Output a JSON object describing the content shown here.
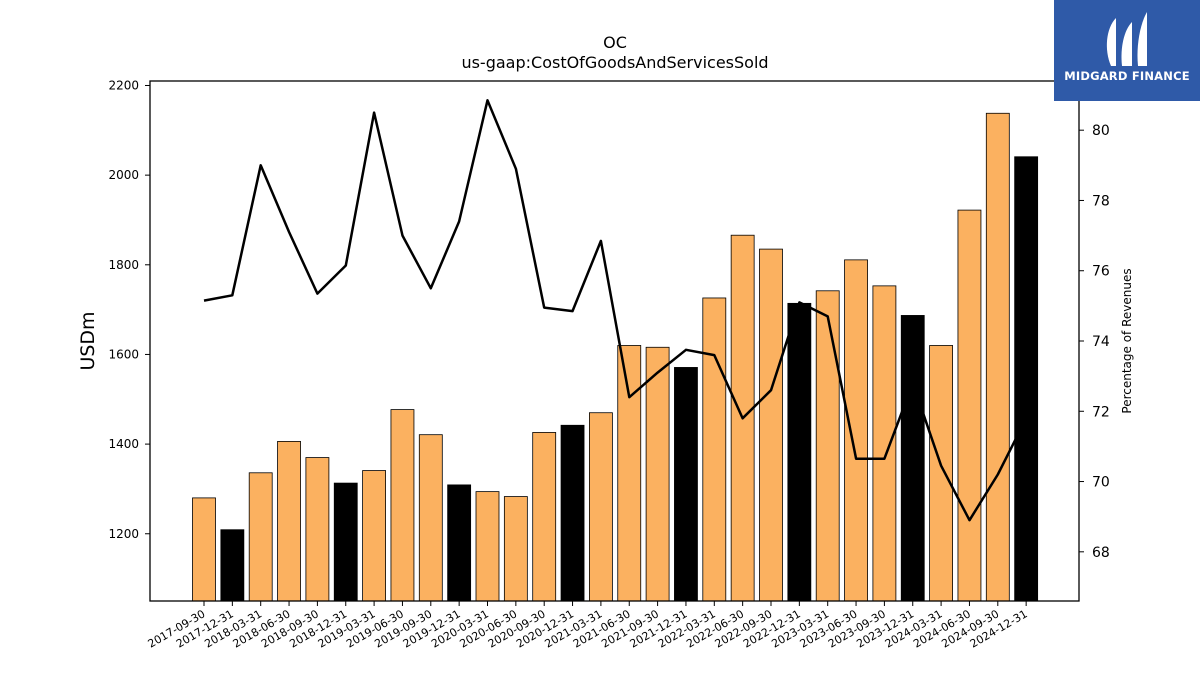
{
  "chart_data": {
    "type": "bar",
    "title": "OC",
    "subtitle": "us-gaap:CostOfGoodsAndServicesSold",
    "ylabel": "USDm",
    "y2label": "Percentage of Revenues",
    "ylim": [
      1050,
      2210
    ],
    "y2lim": [
      66.6,
      81.4
    ],
    "yticks": [
      1200,
      1400,
      1600,
      1800,
      2000,
      2200
    ],
    "y2ticks": [
      68,
      70,
      72,
      74,
      76,
      78,
      80
    ],
    "categories": [
      "2017-09-30",
      "2017-12-31",
      "2018-03-31",
      "2018-06-30",
      "2018-09-30",
      "2018-12-31",
      "2019-03-31",
      "2019-06-30",
      "2019-09-30",
      "2019-12-31",
      "2020-03-31",
      "2020-06-30",
      "2020-09-30",
      "2020-12-31",
      "2021-03-31",
      "2021-06-30",
      "2021-09-30",
      "2021-12-31",
      "2022-03-31",
      "2022-06-30",
      "2022-09-30",
      "2022-12-31",
      "2023-03-31",
      "2023-06-30",
      "2023-09-30",
      "2023-12-31",
      "2024-03-31",
      "2024-06-30",
      "2024-09-30",
      "2024-12-31"
    ],
    "series": [
      {
        "type": "bar",
        "values": [
          1280,
          1209,
          1336,
          1406,
          1370,
          1313,
          1341,
          1477,
          1421,
          1309,
          1294,
          1283,
          1426,
          1442,
          1470,
          1620,
          1616,
          1571,
          1726,
          1866,
          1835,
          1714,
          1742,
          1811,
          1753,
          1687,
          1620,
          1922,
          2138,
          2041
        ],
        "colors": [
          "#fbb160",
          "#000000",
          "#fbb160",
          "#fbb160",
          "#fbb160",
          "#000000",
          "#fbb160",
          "#fbb160",
          "#fbb160",
          "#000000",
          "#fbb160",
          "#fbb160",
          "#fbb160",
          "#000000",
          "#fbb160",
          "#fbb160",
          "#fbb160",
          "#000000",
          "#fbb160",
          "#fbb160",
          "#fbb160",
          "#000000",
          "#fbb160",
          "#fbb160",
          "#fbb160",
          "#000000",
          "#fbb160",
          "#fbb160",
          "#fbb160",
          "#000000"
        ]
      },
      {
        "type": "line",
        "axis": "right",
        "color": "#000000",
        "values": [
          75.15,
          75.3,
          79.0,
          77.1,
          75.35,
          76.15,
          80.5,
          77.0,
          75.5,
          77.4,
          80.85,
          78.9,
          74.95,
          74.85,
          76.85,
          72.4,
          73.1,
          73.75,
          73.6,
          71.8,
          72.6,
          75.1,
          74.7,
          70.65,
          70.65,
          72.8,
          70.45,
          68.9,
          70.2,
          71.8
        ]
      }
    ],
    "grid": false,
    "legend": "none"
  },
  "logo": {
    "text": "MIDGARD FINANCE",
    "background": "#2f5aa8"
  }
}
